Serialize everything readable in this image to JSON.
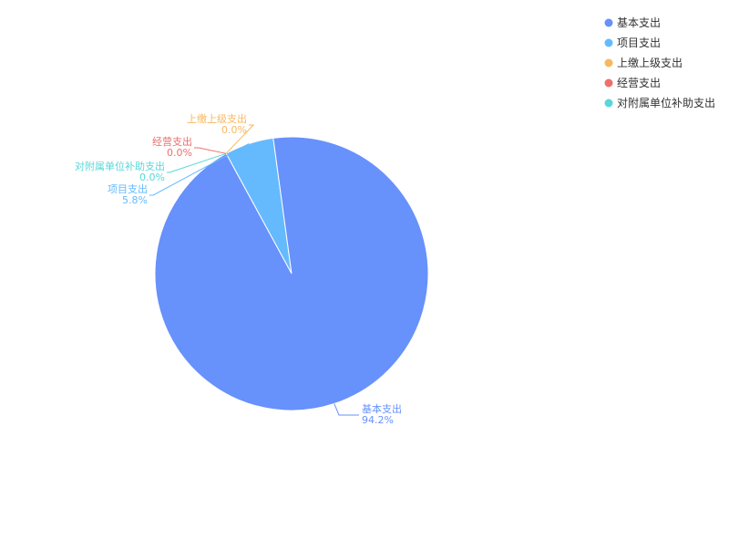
{
  "chart_data": {
    "type": "pie",
    "slices": [
      {
        "name": "基本支出",
        "value": 94.2,
        "label": "94.2%",
        "color": "#6791fb"
      },
      {
        "name": "项目支出",
        "value": 5.8,
        "label": "5.8%",
        "color": "#65bafd"
      },
      {
        "name": "上缴上级支出",
        "value": 0.0,
        "label": "0.0%",
        "color": "#f8b85f"
      },
      {
        "name": "经营支出",
        "value": 0.0,
        "label": "0.0%",
        "color": "#ee6f6c"
      },
      {
        "name": "对附属单位补助支出",
        "value": 0.0,
        "label": "0.0%",
        "color": "#58d7d8"
      }
    ],
    "legend": {
      "placement": "top-right"
    }
  }
}
